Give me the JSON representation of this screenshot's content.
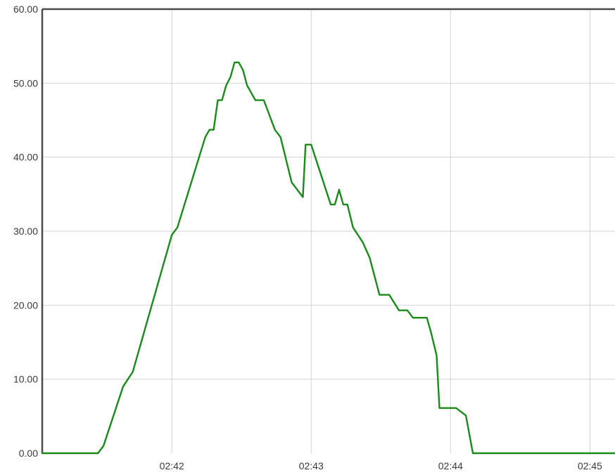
{
  "chart_data": {
    "type": "line",
    "title": "",
    "xlabel": "",
    "ylabel": "",
    "x_unit": "minutes past 02:00",
    "xlim": [
      41.07,
      45.18
    ],
    "ylim": [
      0,
      60
    ],
    "grid": true,
    "legend": "none",
    "y_ticks": [
      0,
      10,
      20,
      30,
      40,
      50,
      60
    ],
    "y_tick_labels": [
      "0.00",
      "10.00",
      "20.00",
      "30.00",
      "40.00",
      "50.00",
      "60.00"
    ],
    "x_ticks": [
      42,
      43,
      44,
      45
    ],
    "x_tick_labels": [
      "02:42",
      "02:43",
      "02:44",
      "02:45"
    ],
    "series": [
      {
        "color": "#1a8a1a",
        "x": [
          41.07,
          41.47,
          41.51,
          41.65,
          41.72,
          42.0,
          42.04,
          42.24,
          42.27,
          42.3,
          42.33,
          42.36,
          42.39,
          42.42,
          42.45,
          42.48,
          42.51,
          42.54,
          42.6,
          42.66,
          42.74,
          42.78,
          42.86,
          42.94,
          42.96,
          43.0,
          43.14,
          43.17,
          43.2,
          43.23,
          43.26,
          43.3,
          43.37,
          43.42,
          43.49,
          43.56,
          43.63,
          43.69,
          43.73,
          43.76,
          43.83,
          43.86,
          43.9,
          43.92,
          43.95,
          44.04,
          44.11,
          44.16,
          44.9,
          45.18
        ],
        "y": [
          0,
          0,
          1,
          9,
          11,
          29.5,
          30.5,
          42.7,
          43.7,
          43.7,
          47.7,
          47.7,
          49.7,
          50.8,
          52.8,
          52.8,
          51.8,
          49.7,
          47.7,
          47.7,
          43.7,
          42.7,
          36.6,
          34.6,
          41.7,
          41.7,
          33.6,
          33.6,
          35.6,
          33.6,
          33.6,
          30.5,
          28.5,
          26.4,
          21.4,
          21.4,
          19.3,
          19.3,
          18.3,
          18.3,
          18.3,
          16.3,
          13.2,
          6.1,
          6.1,
          6.1,
          5.1,
          0,
          0,
          0
        ]
      }
    ]
  }
}
